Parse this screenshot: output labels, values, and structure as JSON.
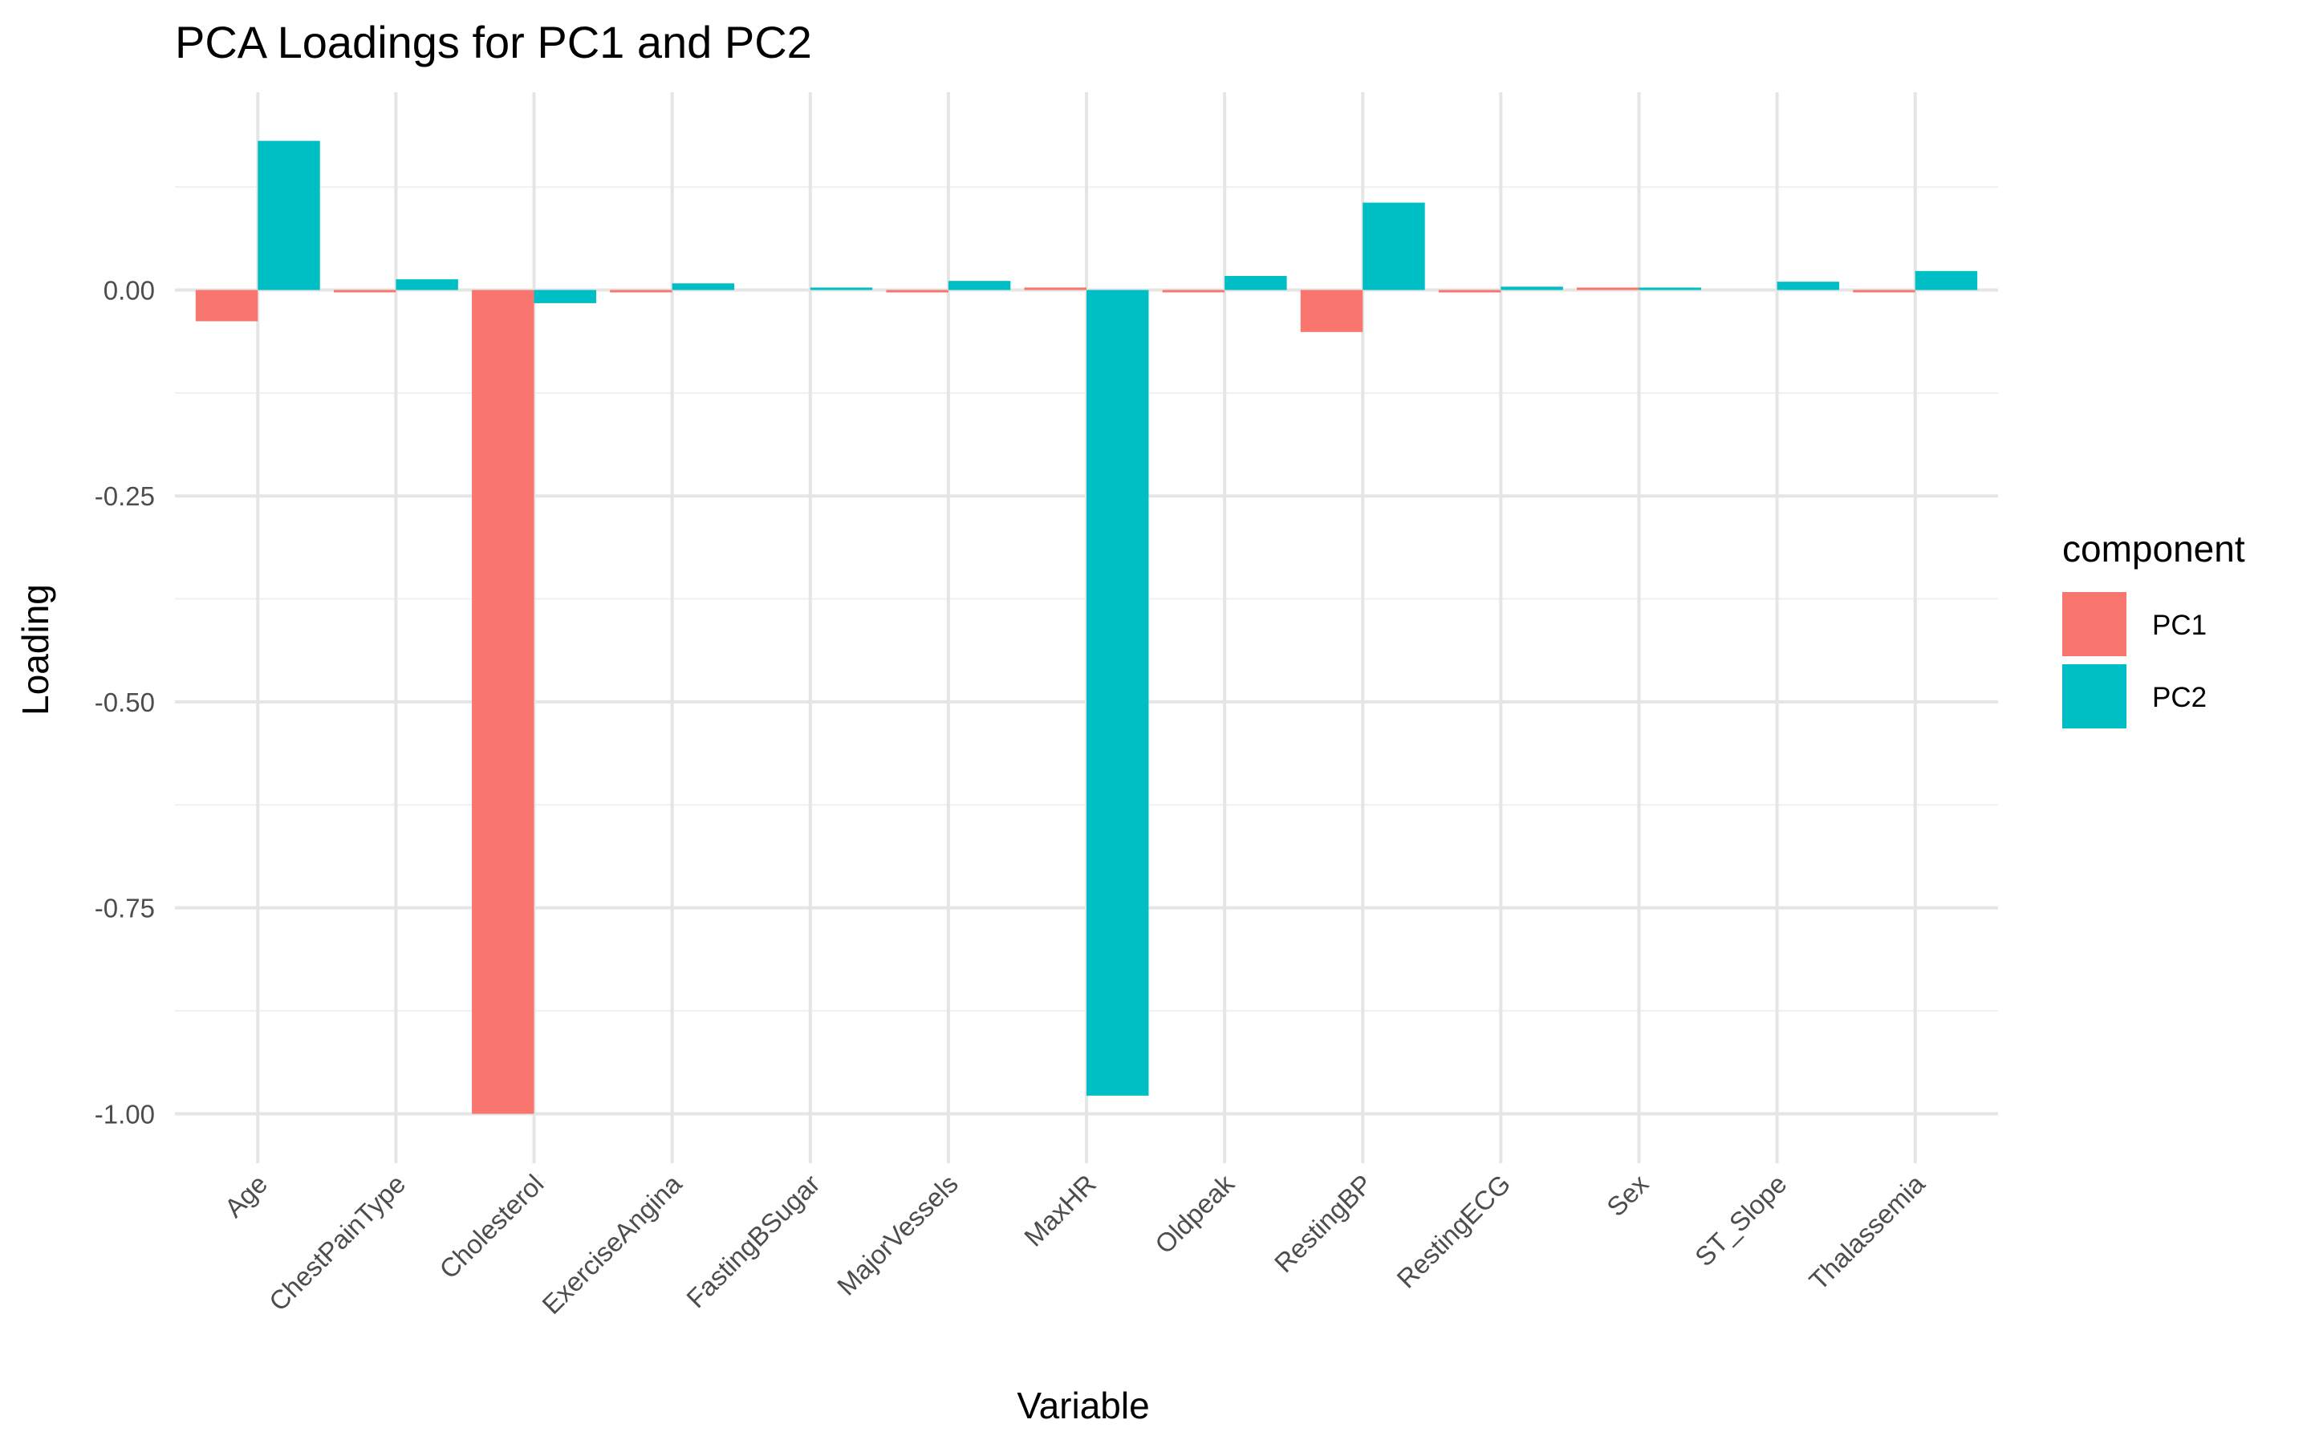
{
  "chart_data": {
    "type": "bar",
    "title": "PCA Loadings for PC1 and PC2",
    "xlabel": "Variable",
    "ylabel": "Loading",
    "categories": [
      "Age",
      "ChestPainType",
      "Cholesterol",
      "ExerciseAngina",
      "FastingBSugar",
      "MajorVessels",
      "MaxHR",
      "Oldpeak",
      "RestingBP",
      "RestingECG",
      "Sex",
      "ST_Slope",
      "Thalassemia"
    ],
    "series": [
      {
        "name": "PC1",
        "color": "#F8766D",
        "values": [
          -0.038,
          -0.002,
          -1.0,
          -0.001,
          0.0,
          -0.003,
          0.003,
          -0.001,
          -0.051,
          -0.003,
          0.001,
          0.0,
          -0.001
        ]
      },
      {
        "name": "PC2",
        "color": "#00BFC4",
        "values": [
          0.181,
          0.013,
          -0.016,
          0.008,
          0.001,
          0.011,
          -0.978,
          0.017,
          0.106,
          0.004,
          0.001,
          0.01,
          0.023
        ]
      }
    ],
    "ylim": [
      -1.06,
      0.24
    ],
    "yticks": [
      -1.0,
      -0.75,
      -0.5,
      -0.25,
      0.0
    ],
    "ytick_labels": [
      "-1.00",
      "-0.75",
      "-0.50",
      "-0.25",
      "0.00"
    ],
    "legend": {
      "title": "component",
      "placement": "right"
    },
    "grid": true
  }
}
